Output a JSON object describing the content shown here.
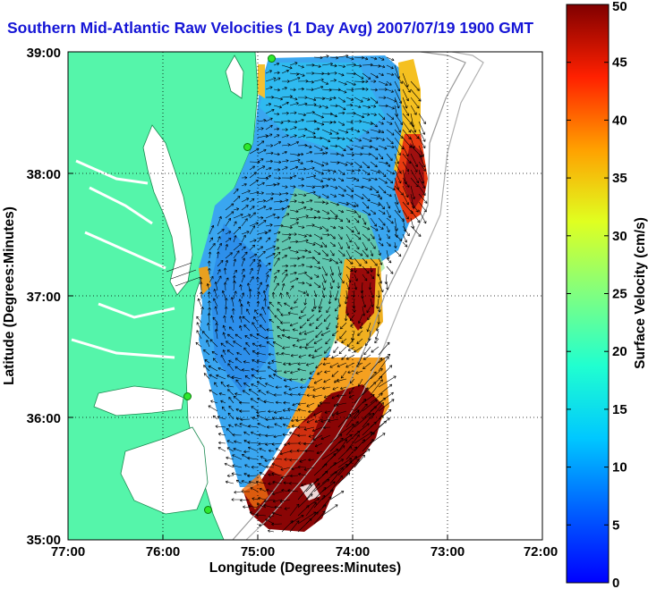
{
  "title": "Southern Mid-Atlantic Raw Velocities (1 Day Avg) 2007/07/19 1900 GMT",
  "map": {
    "x_axis_label": "Longitude (Degrees:Minutes)",
    "y_axis_label": "Latitude (Degrees:Minutes)",
    "x_ticks": [
      "77:00",
      "76:00",
      "75:00",
      "74:00",
      "73:00",
      "72:00"
    ],
    "y_ticks": [
      "39:00",
      "38:00",
      "37:00",
      "36:00",
      "35:00"
    ],
    "lon_range": [
      -77,
      -72
    ],
    "lat_range": [
      35,
      39
    ],
    "land_color": "#55f5aa",
    "water_color": "#ffffff",
    "grid": "dotted",
    "station_markers": [
      {
        "lon": -74.86,
        "lat": 38.95
      },
      {
        "lon": -75.11,
        "lat": 38.22
      },
      {
        "lon": -75.75,
        "lat": 36.18
      },
      {
        "lon": -75.53,
        "lat": 35.25
      }
    ]
  },
  "colorbar": {
    "label": "Surface Velocity (cm/s)",
    "ticks": [
      "0",
      "5",
      "10",
      "15",
      "20",
      "25",
      "30",
      "35",
      "40",
      "45",
      "50"
    ],
    "min": 0,
    "max": 50,
    "colormap": "jet"
  }
}
